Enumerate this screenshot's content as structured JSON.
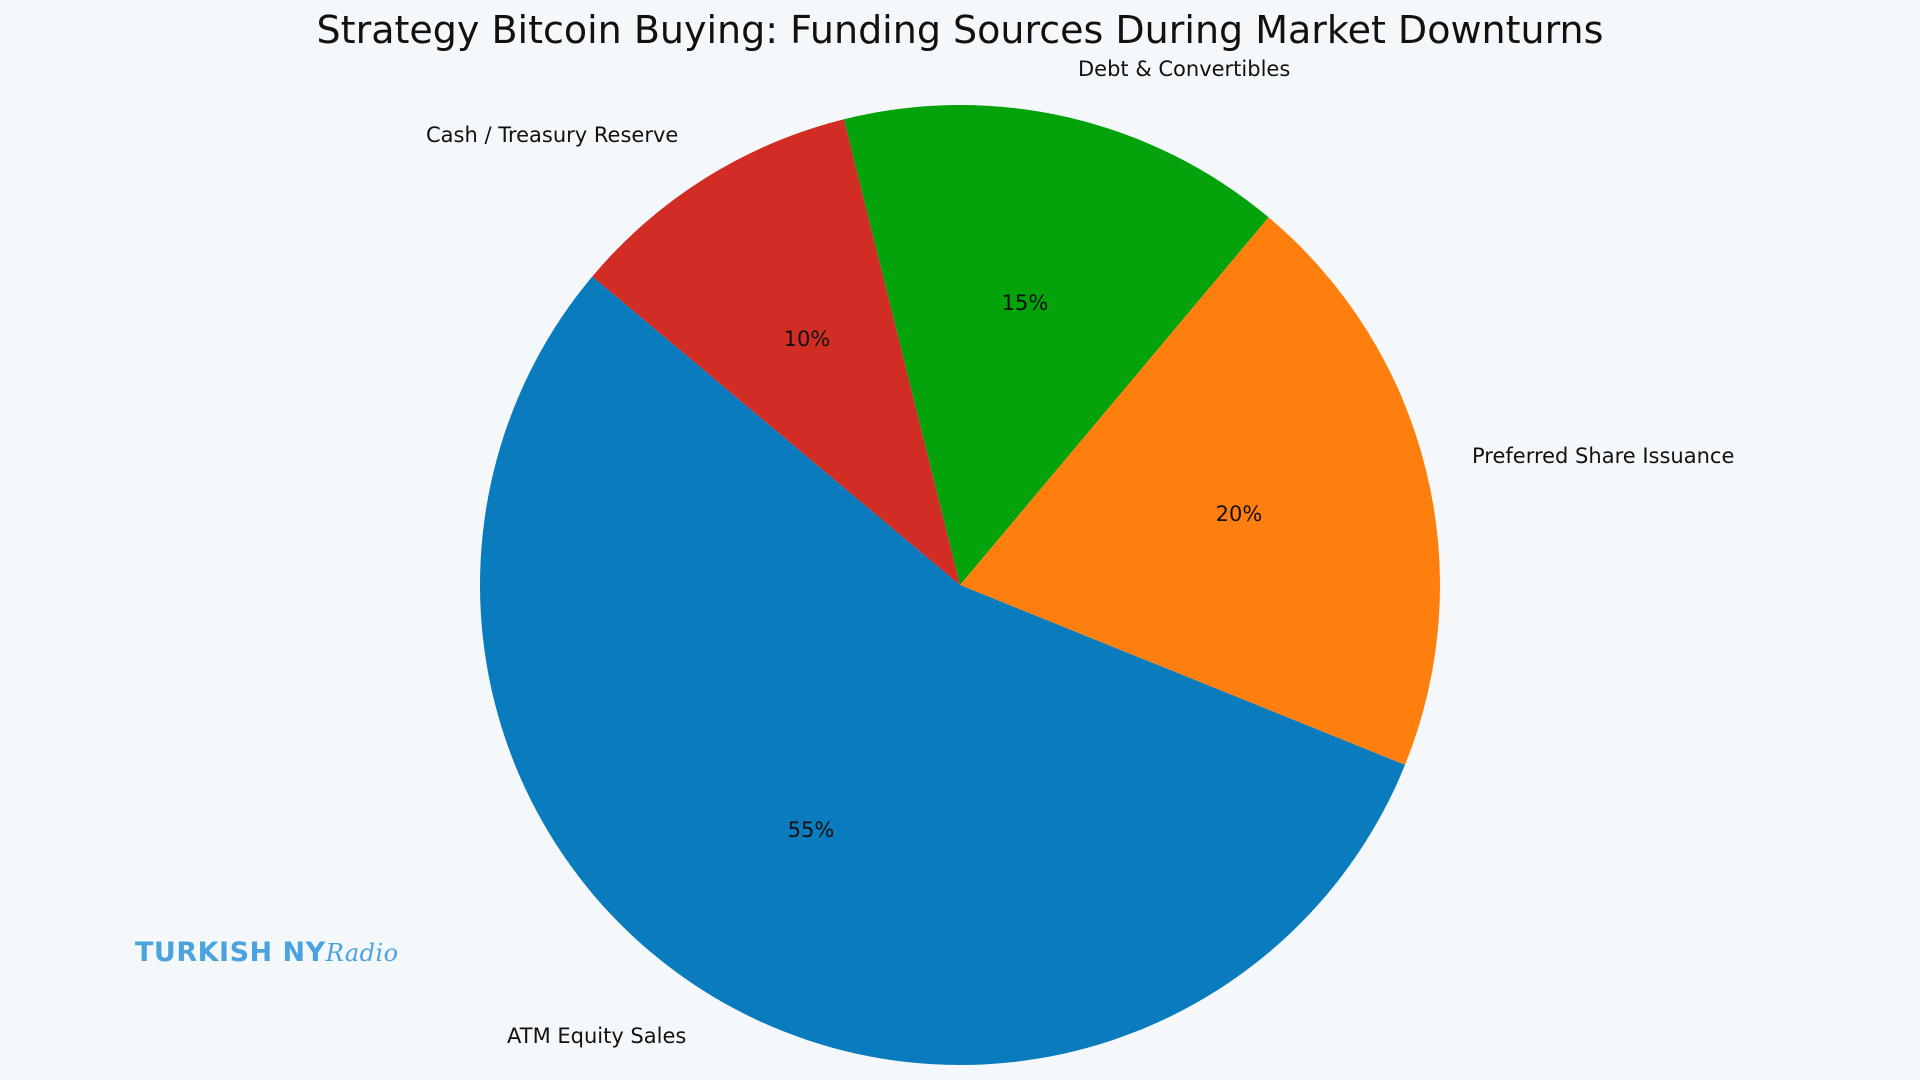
{
  "chart_data": {
    "type": "pie",
    "title": "Strategy Bitcoin Buying: Funding Sources During Market Downturns",
    "start_angle": 140,
    "categories": [
      "ATM Equity Sales",
      "Preferred Share Issuance",
      "Debt & Convertibles",
      "Cash / Treasury Reserve"
    ],
    "values": [
      55,
      20,
      15,
      10
    ],
    "value_labels": [
      "55%",
      "20%",
      "15%",
      "10%"
    ],
    "colors": [
      "#0a7bbd",
      "#ff7f0e",
      "#04a20b",
      "#d12d25"
    ]
  },
  "watermark": {
    "brand": "TURKISH NY",
    "script": "Radio"
  }
}
